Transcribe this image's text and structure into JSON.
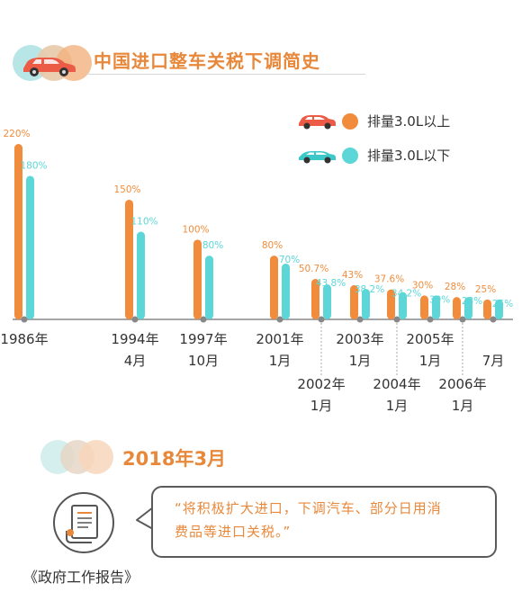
{
  "header": {
    "title": "中国进口整车关税下调简史"
  },
  "legend": [
    {
      "label": "排量3.0L以上",
      "color": "#f08c3c",
      "car_icon": "red-car-icon"
    },
    {
      "label": "排量3.0L以下",
      "color": "#5cd6d6",
      "car_icon": "teal-car-icon"
    }
  ],
  "chart_data": {
    "type": "bar",
    "title": "中国进口整车关税下调简史",
    "series": [
      {
        "name": "排量3.0L以上",
        "values": [
          220,
          150,
          100,
          80,
          50.7,
          43,
          37.6,
          30,
          28,
          25
        ],
        "labels": [
          "220%",
          "150%",
          "100%",
          "80%",
          "50.7%",
          "43%",
          "37.6%",
          "30%",
          "28%",
          "25%"
        ]
      },
      {
        "name": "排量3.0L以下",
        "values": [
          180,
          110,
          80,
          70,
          43.8,
          38.2,
          34.2,
          30,
          28,
          25
        ],
        "labels": [
          "180%",
          "110%",
          "80%",
          "70%",
          "43.8%",
          "38.2%",
          "34.2%",
          "30%",
          "28%",
          "25%"
        ]
      }
    ],
    "categories": [
      {
        "line1": "1986年",
        "line2": ""
      },
      {
        "line1": "1994年",
        "line2": "4月"
      },
      {
        "line1": "1997年",
        "line2": "10月"
      },
      {
        "line1": "2001年",
        "line2": "1月"
      },
      {
        "line1": "2002年",
        "line2": "1月"
      },
      {
        "line1": "2003年",
        "line2": "1月"
      },
      {
        "line1": "2004年",
        "line2": "1月"
      },
      {
        "line1": "2005年",
        "line2": "1月"
      },
      {
        "line1": "2006年",
        "line2": "1月"
      },
      {
        "line1": "",
        "line2": "7月"
      }
    ],
    "ylim": [
      0,
      220
    ],
    "grid": false,
    "legend_position": "top-right"
  },
  "section2": {
    "title": "2018年3月"
  },
  "quote": {
    "line1": "“将积极扩大进口，下调汽车、部分日用消",
    "line2": "费品等进口关税。”"
  },
  "document": {
    "label": "《政府工作报告》",
    "icon": "scroll-document-icon"
  },
  "colors": {
    "orange": "#f08c3c",
    "teal": "#5cd6d6",
    "title": "#e8883a"
  }
}
